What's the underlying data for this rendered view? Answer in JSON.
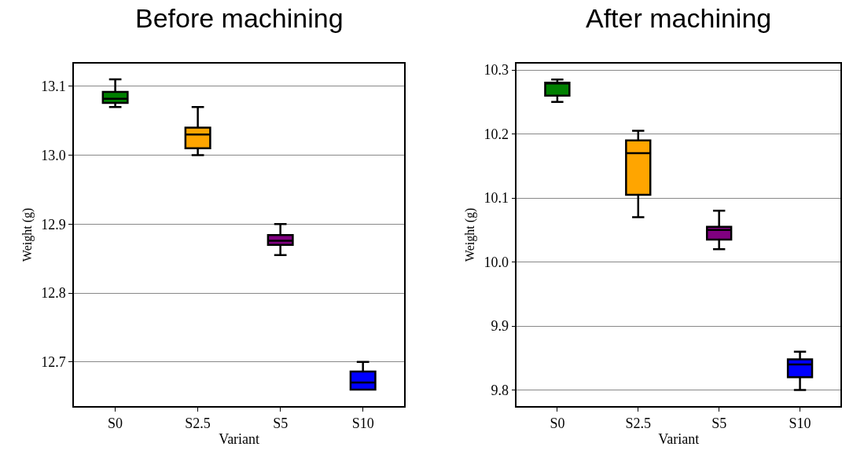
{
  "chart_data": [
    {
      "type": "box",
      "title": "Before machining",
      "xlabel": "Variant",
      "ylabel": "Weight (g)",
      "categories": [
        "S0",
        "S2.5",
        "S5",
        "S10"
      ],
      "colors": [
        "#008000",
        "#ffa500",
        "#800080",
        "#0000ff"
      ],
      "boxes": [
        {
          "low": 13.07,
          "q1": 13.076,
          "median": 13.082,
          "q3": 13.092,
          "high": 13.11
        },
        {
          "low": 13.0,
          "q1": 13.01,
          "median": 13.03,
          "q3": 13.04,
          "high": 13.07
        },
        {
          "low": 12.855,
          "q1": 12.87,
          "median": 12.876,
          "q3": 12.884,
          "high": 12.9
        },
        {
          "low": 12.66,
          "q1": 12.66,
          "median": 12.67,
          "q3": 12.686,
          "high": 12.7
        }
      ],
      "ylim": [
        12.636,
        13.133
      ],
      "yticks": [
        12.7,
        {
          "value": 12.8,
          "label": "12.8"
        },
        12.9,
        {
          "value": 13.0,
          "label": "13.0"
        },
        13.1
      ],
      "grid": "y"
    },
    {
      "type": "box",
      "title": "After machining",
      "xlabel": "Variant",
      "ylabel": "Weight (g)",
      "categories": [
        "S0",
        "S2.5",
        "S5",
        "S10"
      ],
      "colors": [
        "#008000",
        "#ffa500",
        "#800080",
        "#0000ff"
      ],
      "boxes": [
        {
          "low": 10.25,
          "q1": 10.26,
          "median": 10.28,
          "q3": 10.28,
          "high": 10.285
        },
        {
          "low": 10.07,
          "q1": 10.105,
          "median": 10.17,
          "q3": 10.19,
          "high": 10.205
        },
        {
          "low": 10.02,
          "q1": 10.035,
          "median": 10.05,
          "q3": 10.055,
          "high": 10.08
        },
        {
          "low": 9.8,
          "q1": 9.82,
          "median": 9.84,
          "q3": 9.848,
          "high": 9.86
        }
      ],
      "ylim": [
        9.775,
        10.31
      ],
      "yticks": [
        9.8,
        9.9,
        {
          "value": 10.0,
          "label": "10.0"
        },
        10.1,
        10.2,
        10.3
      ],
      "grid": "y"
    }
  ]
}
